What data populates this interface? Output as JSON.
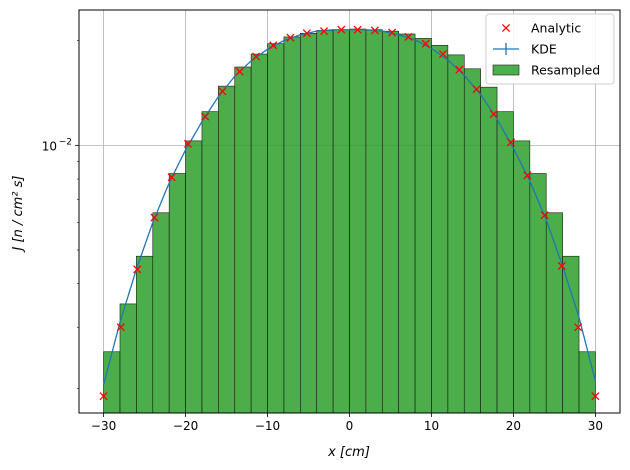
{
  "chart_data": {
    "type": "bar",
    "xlabel": "x [cm]",
    "ylabel": "J [n / cm² s]",
    "xlim": [
      -33,
      33
    ],
    "ylim": [
      0.0017,
      0.0245
    ],
    "yscale": "log",
    "grid": true,
    "legend_position": "top-right",
    "xticks": [
      -30,
      -20,
      -10,
      0,
      10,
      20,
      30
    ],
    "xtick_labels": [
      "−30",
      "−20",
      "−10",
      "0",
      "10",
      "20",
      "30"
    ],
    "yticks": [
      0.01
    ],
    "ytick_labels": [
      "10",
      "−2"
    ],
    "colors": {
      "histogram": "#2ca02c",
      "kde": "#1f77b4",
      "analytic": "#ff0000"
    },
    "series": [
      {
        "name": "Resampled",
        "kind": "histogram",
        "bin_edges": [
          -30,
          -28,
          -26,
          -24,
          -22,
          -20,
          -18,
          -16,
          -14,
          -12,
          -10,
          -8,
          -6,
          -4,
          -2,
          0,
          2,
          4,
          6,
          8,
          10,
          12,
          14,
          16,
          18,
          20,
          22,
          24,
          26,
          28,
          30
        ],
        "values": [
          0.00255,
          0.0035,
          0.0048,
          0.0064,
          0.0083,
          0.0103,
          0.0125,
          0.0148,
          0.0168,
          0.0183,
          0.0196,
          0.0205,
          0.021,
          0.0214,
          0.0215,
          0.0216,
          0.0215,
          0.0213,
          0.0209,
          0.0203,
          0.0194,
          0.0182,
          0.0166,
          0.0147,
          0.0125,
          0.0103,
          0.0083,
          0.0064,
          0.0048,
          0.00255
        ]
      },
      {
        "name": "KDE",
        "kind": "line",
        "x": [
          -30,
          -28,
          -26,
          -24,
          -22,
          -20,
          -18,
          -16,
          -14,
          -12,
          -10,
          -8,
          -6,
          -4,
          -2,
          0,
          2,
          4,
          6,
          8,
          10,
          12,
          14,
          16,
          18,
          20,
          22,
          24,
          26,
          28,
          30
        ],
        "values": [
          0.00205,
          0.0031,
          0.0044,
          0.006,
          0.0078,
          0.0097,
          0.0117,
          0.0138,
          0.0158,
          0.0175,
          0.0189,
          0.02,
          0.0208,
          0.0213,
          0.0215,
          0.0215,
          0.0215,
          0.0213,
          0.0208,
          0.0201,
          0.019,
          0.0176,
          0.0159,
          0.014,
          0.0119,
          0.0098,
          0.0079,
          0.0061,
          0.0045,
          0.0032,
          0.0021
        ]
      },
      {
        "name": "Analytic",
        "kind": "scatter",
        "x": [
          -30,
          -27.9,
          -25.9,
          -23.8,
          -21.7,
          -19.7,
          -17.6,
          -15.5,
          -13.4,
          -11.4,
          -9.3,
          -7.2,
          -5.2,
          -3.1,
          -1.0,
          1.0,
          3.1,
          5.2,
          7.2,
          9.3,
          11.4,
          13.4,
          15.5,
          17.6,
          19.7,
          21.7,
          23.8,
          25.9,
          27.9,
          30
        ],
        "values": [
          0.0019,
          0.003,
          0.0044,
          0.0062,
          0.0081,
          0.0101,
          0.0121,
          0.0143,
          0.0163,
          0.018,
          0.0194,
          0.0204,
          0.021,
          0.0213,
          0.0215,
          0.0215,
          0.0214,
          0.0211,
          0.0205,
          0.0196,
          0.0183,
          0.0165,
          0.0145,
          0.0123,
          0.0102,
          0.0082,
          0.0063,
          0.0045,
          0.003,
          0.0019
        ]
      }
    ]
  }
}
